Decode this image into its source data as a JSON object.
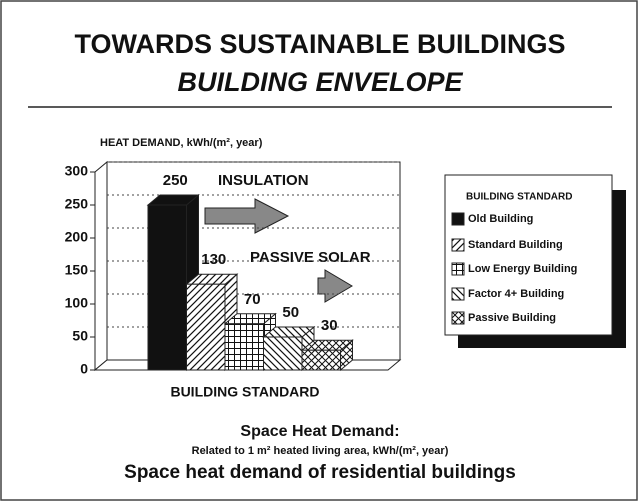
{
  "chart_data": {
    "type": "bar",
    "title": "TOWARDS SUSTAINABLE BUILDINGS",
    "subtitle": "BUILDING ENVELOPE",
    "y_label": "HEAT DEMAND, kWh/(m², year)",
    "x_label": "BUILDING STANDARD",
    "annotations": [
      "INSULATION",
      "PASSIVE SOLAR"
    ],
    "legend_title": "BUILDING STANDARD",
    "legend": "right",
    "categories": [
      "Old Building",
      "Standard Building",
      "Low Energy Building",
      "Factor 4+ Building",
      "Passive Building"
    ],
    "values": [
      250,
      130,
      70,
      50,
      30
    ],
    "patterns": [
      "solid",
      "hatch-forward",
      "grid",
      "hatch-back",
      "crosshatch"
    ],
    "ylim": [
      0,
      300
    ],
    "yticks": [
      0,
      50,
      100,
      150,
      200,
      250,
      300
    ],
    "grid": true,
    "caption": [
      "Space Heat Demand:",
      "Related to 1 m² heated living area, kWh/(m², year)",
      "Space heat demand of residential buildings"
    ]
  }
}
